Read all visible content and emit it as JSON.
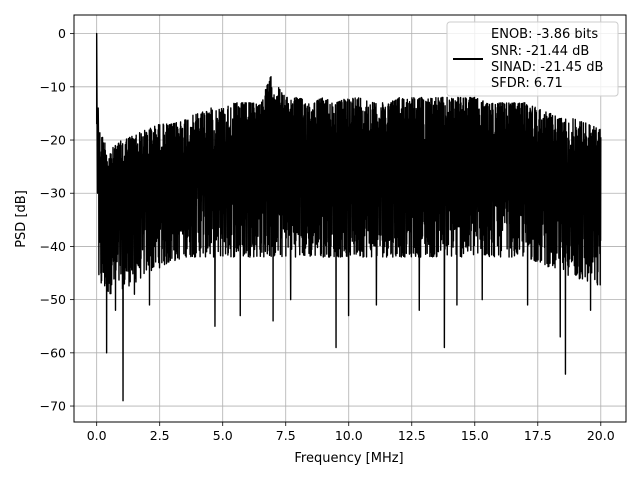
{
  "chart_data": {
    "type": "line",
    "title": "",
    "xlabel": "Frequency [MHz]",
    "ylabel": "PSD [dB]",
    "xlim": [
      -0.9,
      21.0
    ],
    "ylim": [
      -73.0,
      3.5
    ],
    "xticks": [
      0.0,
      2.5,
      5.0,
      7.5,
      10.0,
      12.5,
      15.0,
      17.5,
      20.0
    ],
    "xtick_labels": [
      "0.0",
      "2.5",
      "5.0",
      "7.5",
      "10.0",
      "12.5",
      "15.0",
      "17.5",
      "20.0"
    ],
    "yticks": [
      0,
      -10,
      -20,
      -30,
      -40,
      -50,
      -60,
      -70
    ],
    "ytick_labels": [
      "0",
      "−10",
      "−20",
      "−30",
      "−40",
      "−50",
      "−60",
      "−70"
    ],
    "grid": true,
    "legend_position": "top-right",
    "series": [
      {
        "name": "",
        "color": "#000000",
        "peak": {
          "x": 0.0,
          "y": 0.0
        },
        "upper_envelope": {
          "x": [
            0.1,
            0.5,
            1.0,
            1.5,
            2.0,
            2.5,
            3.0,
            3.5,
            4.0,
            4.5,
            5.0,
            5.5,
            6.0,
            6.5,
            6.9,
            7.5,
            8.0,
            8.5,
            9.0,
            9.5,
            10.0,
            10.5,
            11.0,
            11.5,
            12.0,
            12.5,
            13.0,
            13.5,
            14.0,
            14.5,
            15.0,
            15.5,
            16.0,
            16.5,
            17.0,
            17.5,
            18.0,
            18.5,
            19.0,
            19.5,
            20.0
          ],
          "y": [
            -18,
            -22,
            -20,
            -19,
            -18,
            -17,
            -17,
            -16,
            -15,
            -14,
            -14,
            -13,
            -13,
            -13,
            -8,
            -12,
            -12,
            -13,
            -12,
            -13,
            -12,
            -12,
            -13,
            -13,
            -12,
            -12,
            -12,
            -12,
            -12,
            -12,
            -12,
            -13,
            -13,
            -13,
            -13,
            -14,
            -15,
            -16,
            -16,
            -17,
            -18
          ]
        },
        "lower_envelope": {
          "x": [
            0.1,
            0.5,
            1.0,
            1.5,
            2.0,
            2.5,
            3.0,
            3.5,
            4.0,
            4.5,
            5.0,
            5.5,
            6.0,
            6.5,
            7.0,
            7.5,
            8.0,
            8.5,
            9.0,
            9.5,
            10.0,
            10.5,
            11.0,
            11.5,
            12.0,
            12.5,
            13.0,
            13.5,
            14.0,
            14.5,
            15.0,
            15.5,
            16.0,
            16.5,
            17.0,
            17.5,
            18.0,
            18.5,
            19.0,
            19.5,
            20.0
          ],
          "y": [
            -48,
            -49,
            -48,
            -47,
            -45,
            -44,
            -43,
            -42,
            -42,
            -42,
            -42,
            -42,
            -42,
            -42,
            -42,
            -42,
            -42,
            -42,
            -42,
            -42,
            -42,
            -42,
            -42,
            -42,
            -42,
            -42,
            -42,
            -42,
            -42,
            -42,
            -42,
            -42,
            -42,
            -42,
            -42,
            -43,
            -44,
            -45,
            -46,
            -47,
            -48
          ]
        },
        "dips": {
          "x": [
            0.4,
            0.75,
            1.05,
            1.5,
            2.1,
            4.7,
            5.7,
            7.0,
            7.7,
            9.5,
            10.0,
            11.1,
            12.8,
            13.8,
            14.3,
            15.3,
            17.1,
            18.4,
            18.6,
            19.6
          ],
          "y": [
            -60,
            -52,
            -69,
            -49,
            -51,
            -55,
            -53,
            -54,
            -50,
            -59,
            -53,
            -51,
            -52,
            -59,
            -51,
            -50,
            -51,
            -57,
            -64,
            -52
          ]
        }
      }
    ],
    "legend": {
      "lines": [
        "ENOB: -3.86 bits",
        "SNR: -21.44 dB",
        "SINAD: -21.45 dB",
        "SFDR: 6.71"
      ]
    }
  }
}
